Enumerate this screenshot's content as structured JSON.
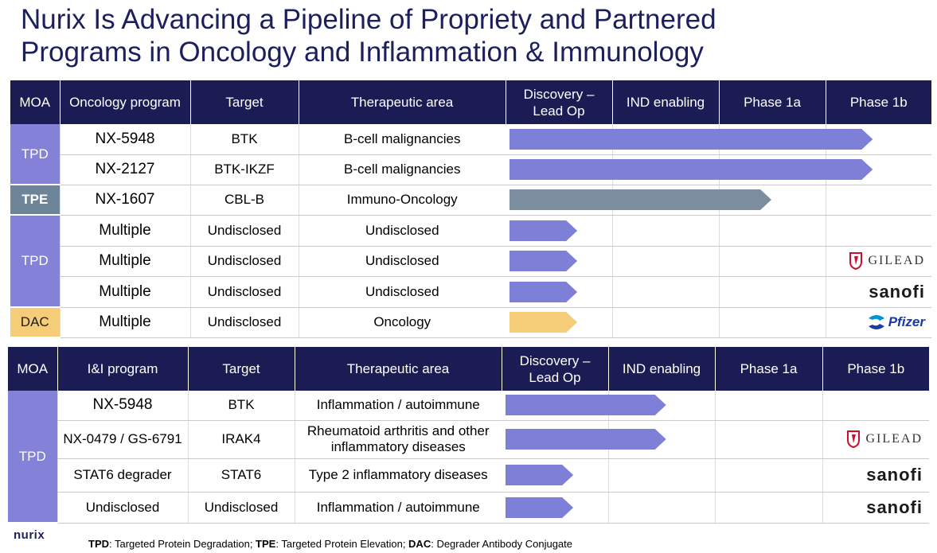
{
  "title_line1": "Nurix Is Advancing a Pipeline of Propriety and Partnered",
  "title_line2": "Programs in Oncology and Inflammation & Immunology",
  "colors": {
    "header_bg": "#1c1c54",
    "tpd": "#8482d8",
    "tpe": "#6e8499",
    "dac": "#f5cd78",
    "bar_tpd": "#7e7fd6",
    "bar_tpe": "#7b8ea0",
    "bar_dac": "#f5cd78"
  },
  "stages": [
    "Discovery – Lead Op",
    "IND enabling",
    "Phase 1a",
    "Phase 1b"
  ],
  "oncology": {
    "headers": {
      "moa": "MOA",
      "program": "Oncology program",
      "target": "Target",
      "area": "Therapeutic area",
      "s1": "Discovery – Lead Op",
      "s2": "IND enabling",
      "s3": "Phase 1a",
      "s4": "Phase 1b"
    },
    "moa_groups": [
      {
        "label": "TPD",
        "rows": 2
      },
      {
        "label": "TPE",
        "rows": 1
      },
      {
        "label": "TPD",
        "rows": 3
      },
      {
        "label": "DAC",
        "rows": 1
      }
    ],
    "rows": [
      {
        "program": "NX-5948",
        "target": "BTK",
        "area": "B-cell malignancies",
        "progress": 3.45,
        "color": "tpd",
        "partner": ""
      },
      {
        "program": "NX-2127",
        "target": "BTK-IKZF",
        "area": "B-cell malignancies",
        "progress": 3.45,
        "color": "tpd",
        "partner": ""
      },
      {
        "program": "NX-1607",
        "target": "CBL-B",
        "area": "Immuno-Oncology",
        "progress": 2.5,
        "color": "tpe",
        "partner": ""
      },
      {
        "program": "Multiple",
        "target": "Undisclosed",
        "area": "Undisclosed",
        "progress": 0.68,
        "color": "tpd",
        "partner": ""
      },
      {
        "program": "Multiple",
        "target": "Undisclosed",
        "area": "Undisclosed",
        "progress": 0.68,
        "color": "tpd",
        "partner": "GILEAD"
      },
      {
        "program": "Multiple",
        "target": "Undisclosed",
        "area": "Undisclosed",
        "progress": 0.68,
        "color": "tpd",
        "partner": "sanofi"
      },
      {
        "program": "Multiple",
        "target": "Undisclosed",
        "area": "Oncology",
        "progress": 0.68,
        "color": "dac",
        "partner": "Pfizer"
      }
    ]
  },
  "ii": {
    "headers": {
      "moa": "MOA",
      "program": "I&I program",
      "target": "Target",
      "area": "Therapeutic area",
      "s1": "Discovery – Lead Op",
      "s2": "IND enabling",
      "s3": "Phase 1a",
      "s4": "Phase 1b"
    },
    "moa_groups": [
      {
        "label": "TPD",
        "rows": 4
      }
    ],
    "rows": [
      {
        "program": "NX-5948",
        "target": "BTK",
        "area": "Inflammation / autoimmune",
        "progress": 1.55,
        "color": "tpd",
        "partner": ""
      },
      {
        "program": "NX-0479 / GS-6791",
        "target": "IRAK4",
        "area": "Rheumatoid arthritis and other inflammatory diseases",
        "progress": 1.55,
        "color": "tpd",
        "partner": "GILEAD"
      },
      {
        "program": "STAT6 degrader",
        "target": "STAT6",
        "area": "Type 2 inflammatory diseases",
        "progress": 0.68,
        "color": "tpd",
        "partner": "sanofi"
      },
      {
        "program": "Undisclosed",
        "target": "Undisclosed",
        "area": "Inflammation / autoimmune",
        "progress": 0.68,
        "color": "tpd",
        "partner": "sanofi"
      }
    ]
  },
  "logo": "nurix",
  "footnote": [
    {
      "term": "TPD",
      "def": ": Targeted Protein Degradation; "
    },
    {
      "term": "TPE",
      "def": ": Targeted Protein Elevation; "
    },
    {
      "term": "DAC",
      "def": ": Degrader Antibody Conjugate"
    }
  ]
}
